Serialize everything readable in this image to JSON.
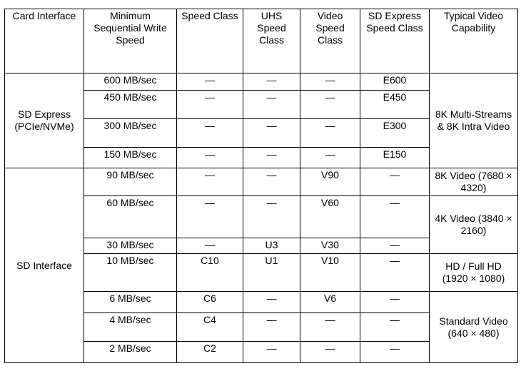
{
  "headers": [
    "Card Interface",
    "Minimum Sequential Write Speed",
    "Speed Class",
    "UHS Speed Class",
    "Video Speed Class",
    "SD Express Speed Class",
    "Typical Video Capability"
  ],
  "groups": {
    "sd_express": "SD Express (PCIe/NVMe)",
    "sd_interface": "SD Interface"
  },
  "video": [
    "8K Multi-Streams & 8K Intra Video",
    "8K Video (7680 × 4320)",
    "4K Video (3840 × 2160)",
    "HD / Full HD (1920 × 1080)",
    "Standard Video (640 × 480)"
  ],
  "rows": [
    {
      "speed": "600 MB/sec",
      "sc": "—",
      "uhs": "—",
      "vsc": "—",
      "sdx": "E600"
    },
    {
      "speed": "450 MB/sec",
      "sc": "—",
      "uhs": "—",
      "vsc": "—",
      "sdx": "E450"
    },
    {
      "speed": "300 MB/sec",
      "sc": "—",
      "uhs": "—",
      "vsc": "—",
      "sdx": "E300"
    },
    {
      "speed": "150 MB/sec",
      "sc": "—",
      "uhs": "—",
      "vsc": "—",
      "sdx": "E150"
    },
    {
      "speed": "90 MB/sec",
      "sc": "—",
      "uhs": "—",
      "vsc": "V90",
      "sdx": "—"
    },
    {
      "speed": "60 MB/sec",
      "sc": "—",
      "uhs": "—",
      "vsc": "V60",
      "sdx": "—"
    },
    {
      "speed": "30 MB/sec",
      "sc": "—",
      "uhs": "U3",
      "vsc": "V30",
      "sdx": "—"
    },
    {
      "speed": "10 MB/sec",
      "sc": "C10",
      "uhs": "U1",
      "vsc": "V10",
      "sdx": "—"
    },
    {
      "speed": "6 MB/sec",
      "sc": "C6",
      "uhs": "—",
      "vsc": "V6",
      "sdx": "—"
    },
    {
      "speed": "4 MB/sec",
      "sc": "C4",
      "uhs": "—",
      "vsc": "—",
      "sdx": "—"
    },
    {
      "speed": "2 MB/sec",
      "sc": "C2",
      "uhs": "—",
      "vsc": "—",
      "sdx": "—"
    }
  ]
}
